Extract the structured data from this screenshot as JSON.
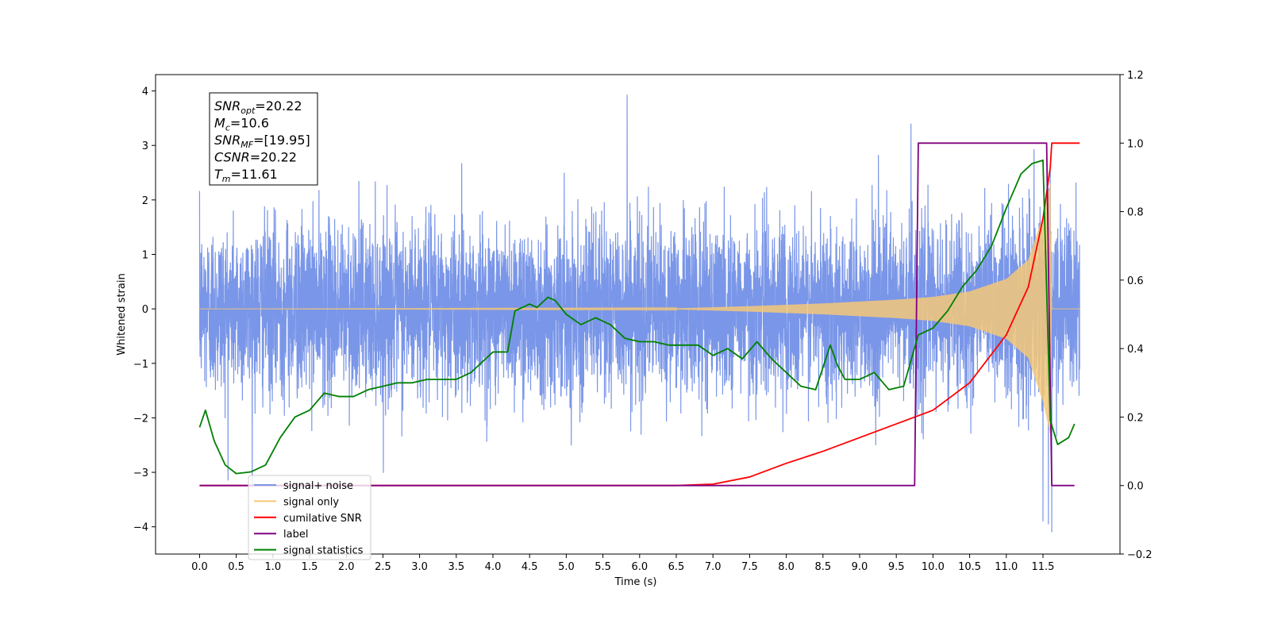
{
  "chart_data": {
    "type": "line",
    "title": "",
    "xlabel": "Time (s)",
    "ylabel": "Whitened strain",
    "y2label": "",
    "xlim": [
      -0.6,
      12.55
    ],
    "ylim": [
      -4.5,
      4.3
    ],
    "y2lim": [
      -0.2,
      1.2
    ],
    "xticks": [
      "0.0",
      "0.5",
      "1.0",
      "1.5",
      "2.0",
      "2.5",
      "3.0",
      "3.5",
      "4.0",
      "4.5",
      "5.0",
      "5.5",
      "6.0",
      "6.5",
      "7.0",
      "7.5",
      "8.0",
      "8.5",
      "9.0",
      "9.5",
      "10.0",
      "10.5",
      "11.0",
      "11.5"
    ],
    "yticks": [
      "4",
      "3",
      "2",
      "1",
      "0",
      "−1",
      "−2",
      "−3",
      "−4"
    ],
    "y2ticks": [
      "1.2",
      "1.0",
      "0.8",
      "0.6",
      "0.4",
      "0.2",
      "0.0",
      "−0.2"
    ],
    "grid": false,
    "legend_position": "lower-left",
    "annotation": {
      "lines": [
        {
          "base": "SNR",
          "sub": "opt",
          "value": "=20.22"
        },
        {
          "base": "M",
          "sub": "c",
          "value": "=10.6"
        },
        {
          "base": "SNR",
          "sub": "MF",
          "value": "=[19.95]"
        },
        {
          "base": "CSNR",
          "sub": "",
          "value": "=20.22"
        },
        {
          "base": "T",
          "sub": "m",
          "value": "=11.61"
        }
      ]
    },
    "series": [
      {
        "name": "signal+ noise",
        "axis": "left",
        "color": "#7a96e8",
        "kind": "noise-band",
        "t_start": 0.0,
        "t_end": 12.0,
        "noise_std": 1.0,
        "typical_max": 2.3,
        "typical_min": -2.0,
        "notable_peaks": [
          {
            "x": 5.83,
            "y": 3.93
          },
          {
            "x": 9.7,
            "y": 3.4
          },
          {
            "x": 11.62,
            "y": -4.1
          },
          {
            "x": 11.5,
            "y": -3.9
          }
        ]
      },
      {
        "name": "signal only",
        "axis": "left",
        "color": "#f5c878",
        "kind": "chirp",
        "amplitude_envelope": {
          "x": [
            0.0,
            6.5,
            7.5,
            8.5,
            9.5,
            10.0,
            10.5,
            11.0,
            11.3,
            11.5,
            11.6,
            11.62,
            12.0
          ],
          "y": [
            0.0,
            0.01,
            0.05,
            0.1,
            0.17,
            0.22,
            0.32,
            0.55,
            0.9,
            1.7,
            2.3,
            0.0,
            0.0
          ]
        }
      },
      {
        "name": "cumilative SNR",
        "axis": "right",
        "color": "#ff0000",
        "x": [
          0.0,
          6.0,
          6.5,
          7.0,
          7.5,
          8.0,
          8.5,
          9.0,
          9.5,
          10.0,
          10.5,
          11.0,
          11.3,
          11.5,
          11.6,
          11.62,
          12.0
        ],
        "y": [
          0.0,
          0.0,
          0.0,
          0.004,
          0.025,
          0.065,
          0.1,
          0.14,
          0.18,
          0.22,
          0.3,
          0.44,
          0.58,
          0.78,
          0.93,
          1.0,
          1.0
        ]
      },
      {
        "name": "label",
        "axis": "right",
        "color": "#800080",
        "x": [
          0.0,
          9.75,
          9.8,
          11.55,
          11.62,
          11.93
        ],
        "y": [
          0.0,
          0.0,
          1.0,
          1.0,
          0.0,
          0.0
        ]
      },
      {
        "name": "signal statistics",
        "axis": "right",
        "color": "#008000",
        "x": [
          0.0,
          0.08,
          0.2,
          0.35,
          0.5,
          0.7,
          0.9,
          1.1,
          1.3,
          1.5,
          1.7,
          1.9,
          2.1,
          2.3,
          2.5,
          2.7,
          2.9,
          3.1,
          3.3,
          3.5,
          3.7,
          3.9,
          4.0,
          4.2,
          4.3,
          4.5,
          4.6,
          4.75,
          4.85,
          5.0,
          5.2,
          5.4,
          5.6,
          5.8,
          6.0,
          6.2,
          6.4,
          6.6,
          6.8,
          7.0,
          7.2,
          7.4,
          7.6,
          7.8,
          8.0,
          8.2,
          8.4,
          8.6,
          8.7,
          8.8,
          9.0,
          9.2,
          9.4,
          9.6,
          9.8,
          10.0,
          10.2,
          10.4,
          10.6,
          10.8,
          11.0,
          11.2,
          11.35,
          11.5,
          11.6,
          11.7,
          11.85,
          11.93
        ],
        "y": [
          0.17,
          0.22,
          0.13,
          0.06,
          0.035,
          0.04,
          0.06,
          0.14,
          0.2,
          0.22,
          0.27,
          0.26,
          0.26,
          0.28,
          0.29,
          0.3,
          0.3,
          0.31,
          0.31,
          0.31,
          0.33,
          0.37,
          0.39,
          0.39,
          0.51,
          0.53,
          0.52,
          0.55,
          0.54,
          0.5,
          0.47,
          0.49,
          0.47,
          0.43,
          0.42,
          0.42,
          0.41,
          0.41,
          0.41,
          0.38,
          0.4,
          0.37,
          0.42,
          0.37,
          0.33,
          0.29,
          0.28,
          0.41,
          0.35,
          0.31,
          0.31,
          0.33,
          0.28,
          0.29,
          0.44,
          0.46,
          0.51,
          0.58,
          0.63,
          0.7,
          0.81,
          0.91,
          0.94,
          0.95,
          0.19,
          0.12,
          0.14,
          0.18
        ]
      }
    ]
  }
}
